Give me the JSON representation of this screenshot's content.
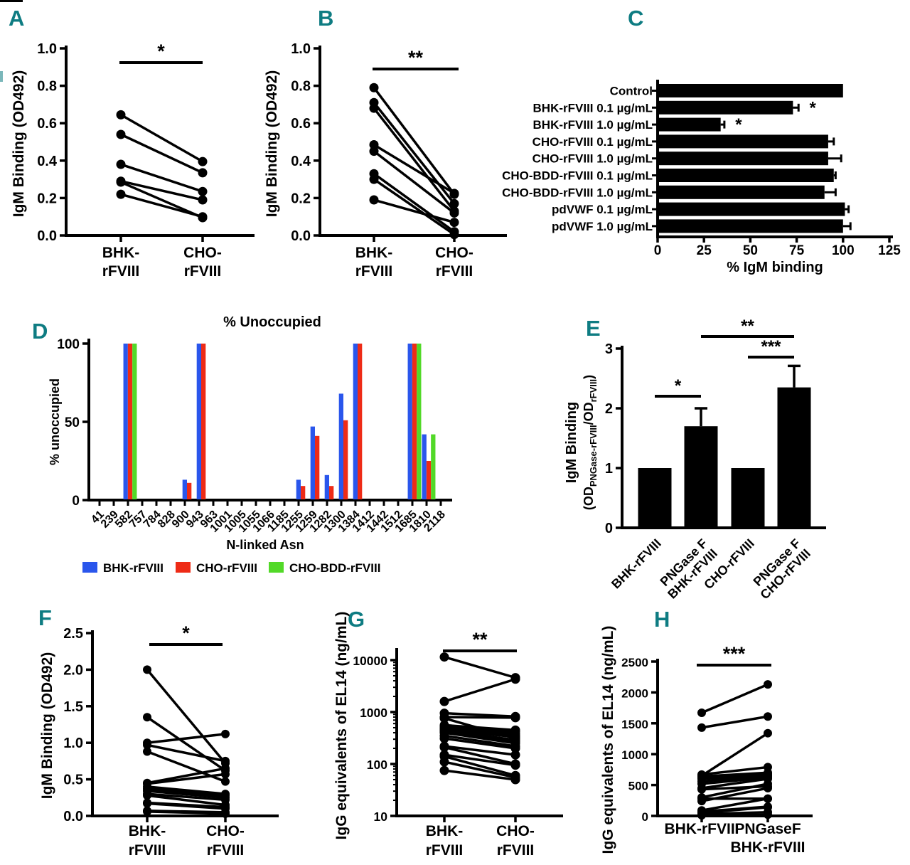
{
  "figure": {
    "accent_teal": "#0e7c82",
    "black": "#000000",
    "panel_letters": [
      "A",
      "B",
      "C",
      "D",
      "E",
      "F",
      "G",
      "H"
    ]
  },
  "chart_data": [
    {
      "panel": "A",
      "type": "paired-line",
      "ylabel": "IgM Binding (OD492)",
      "ylim": [
        0,
        1.0
      ],
      "yticks": [
        {
          "v": 0,
          "l": "0.0"
        },
        {
          "v": 0.2,
          "l": "0.2"
        },
        {
          "v": 0.4,
          "l": "0.4"
        },
        {
          "v": 0.6,
          "l": "0.6"
        },
        {
          "v": 0.8,
          "l": "0.8"
        },
        {
          "v": 1.0,
          "l": "1.0"
        }
      ],
      "categories": [
        [
          "BHK-",
          "rFVIII"
        ],
        [
          "CHO-",
          "rFVIII"
        ]
      ],
      "significance": "*",
      "pairs": [
        [
          0.645,
          0.395
        ],
        [
          0.54,
          0.335
        ],
        [
          0.38,
          0.235
        ],
        [
          0.29,
          0.19
        ],
        [
          0.285,
          0.095
        ],
        [
          0.22,
          0.1
        ]
      ]
    },
    {
      "panel": "B",
      "type": "paired-line",
      "ylabel": "IgM Binding (OD492)",
      "ylim": [
        0,
        1.0
      ],
      "yticks": [
        {
          "v": 0,
          "l": "0.0"
        },
        {
          "v": 0.2,
          "l": "0.2"
        },
        {
          "v": 0.4,
          "l": "0.4"
        },
        {
          "v": 0.6,
          "l": "0.6"
        },
        {
          "v": 0.8,
          "l": "0.8"
        },
        {
          "v": 1.0,
          "l": "1.0"
        }
      ],
      "categories": [
        [
          "BHK-",
          "rFVIII"
        ],
        [
          "CHO-",
          "rFVIII"
        ]
      ],
      "significance": "**",
      "pairs": [
        [
          0.79,
          0.22
        ],
        [
          0.71,
          0.17
        ],
        [
          0.68,
          0.13
        ],
        [
          0.485,
          0.225
        ],
        [
          0.45,
          0.12
        ],
        [
          0.33,
          0.02
        ],
        [
          0.3,
          0.005
        ],
        [
          0.19,
          0.07
        ]
      ]
    },
    {
      "panel": "C",
      "type": "hbar",
      "xlabel": "% IgM binding",
      "xlim": [
        0,
        125
      ],
      "xticks": [
        0,
        25,
        50,
        75,
        100,
        125
      ],
      "rows": [
        {
          "label": "Control",
          "value": 100,
          "error": 0,
          "sig": ""
        },
        {
          "label": "BHK-rFVIII 0.1 µg/mL",
          "value": 73,
          "error": 3,
          "sig": "*"
        },
        {
          "label": "BHK-rFVIII 1.0 µg/mL",
          "value": 34,
          "error": 2,
          "sig": "*"
        },
        {
          "label": "CHO-rFVIII 0.1 µg/mL",
          "value": 92,
          "error": 3,
          "sig": ""
        },
        {
          "label": "CHO-rFVIII 1.0 µg/mL",
          "value": 92,
          "error": 7,
          "sig": ""
        },
        {
          "label": "CHO-BDD-rFVIII 0.1 µg/mL",
          "value": 95,
          "error": 1,
          "sig": ""
        },
        {
          "label": "CHO-BDD-rFVIII 1.0 µg/mL",
          "value": 90,
          "error": 6,
          "sig": ""
        },
        {
          "label": "pdVWF 0.1 µg/mL",
          "value": 101,
          "error": 2,
          "sig": ""
        },
        {
          "label": "pdVWF 1.0 µg/mL",
          "value": 100,
          "error": 4,
          "sig": ""
        }
      ]
    },
    {
      "panel": "D",
      "type": "grouped-bar",
      "title": "% Unoccupied",
      "ylabel": "% unoccupied",
      "xlabel": "N-linked Asn",
      "ylim": [
        0,
        100
      ],
      "yticks": [
        {
          "v": 0,
          "l": "0"
        },
        {
          "v": 50,
          "l": "50"
        },
        {
          "v": 100,
          "l": "100"
        }
      ],
      "categories": [
        "41",
        "239",
        "582",
        "757",
        "784",
        "828",
        "900",
        "943",
        "963",
        "1001",
        "1005",
        "1055",
        "1066",
        "1185",
        "1255",
        "1259",
        "1282",
        "1300",
        "1384",
        "1412",
        "1442",
        "1512",
        "1685",
        "1810",
        "2118"
      ],
      "series": [
        {
          "name": "BHK-rFVIII",
          "color": "#2a56ec",
          "values": [
            0,
            0,
            100,
            0,
            0,
            0,
            13,
            100,
            0,
            0,
            0,
            0,
            0,
            0,
            13,
            47,
            16,
            68,
            100,
            0,
            0,
            0,
            100,
            42,
            0
          ]
        },
        {
          "name": "CHO-rFVIII",
          "color": "#ee2b16",
          "values": [
            0,
            0,
            100,
            0,
            0,
            0,
            11,
            100,
            0,
            0,
            0,
            0,
            0,
            0,
            9,
            41,
            9,
            51,
            100,
            0,
            0,
            0,
            100,
            25,
            0
          ]
        },
        {
          "name": "CHO-BDD-rFVIII",
          "color": "#52d928",
          "values": [
            0,
            0,
            100,
            0,
            0,
            0,
            0,
            0,
            0,
            0,
            0,
            0,
            0,
            0,
            0,
            0,
            0,
            0,
            0,
            0,
            0,
            0,
            100,
            42,
            0
          ]
        }
      ]
    },
    {
      "panel": "E",
      "type": "bar",
      "ylabel_line1": "IgM Binding",
      "ylabel_line2_segments": [
        {
          "t": "(OD",
          "sub": false
        },
        {
          "t": "PNGase-rFVIII",
          "sub": true
        },
        {
          "t": "/OD",
          "sub": false
        },
        {
          "t": "rFVIII",
          "sub": true
        },
        {
          "t": ")",
          "sub": false
        }
      ],
      "ylim": [
        0,
        3
      ],
      "yticks": [
        {
          "v": 0,
          "l": "0"
        },
        {
          "v": 1,
          "l": "1"
        },
        {
          "v": 2,
          "l": "2"
        },
        {
          "v": 3,
          "l": "3"
        }
      ],
      "categories": [
        [
          "BHK-rFVIII"
        ],
        [
          "PNGase F",
          "BHK-rFVIII"
        ],
        [
          "CHO-rFVIII"
        ],
        [
          "PNGase F",
          "CHO-rFVIII"
        ]
      ],
      "values": [
        1.0,
        1.7,
        1.0,
        2.35
      ],
      "errors": [
        0,
        0.3,
        0,
        0.36
      ],
      "significance": [
        {
          "label": "*",
          "from": 0,
          "to": 1
        },
        {
          "label": "***",
          "from": 2,
          "to": 3
        },
        {
          "label": "**",
          "from": 1,
          "to": 3
        }
      ]
    },
    {
      "panel": "F",
      "type": "paired-line",
      "ylabel": "IgM Binding (OD492)",
      "ylim": [
        0,
        2.5
      ],
      "yticks": [
        {
          "v": 0,
          "l": "0.0"
        },
        {
          "v": 0.5,
          "l": "0.5"
        },
        {
          "v": 1.0,
          "l": "1.0"
        },
        {
          "v": 1.5,
          "l": "1.5"
        },
        {
          "v": 2.0,
          "l": "2.0"
        },
        {
          "v": 2.5,
          "l": "2.5"
        }
      ],
      "categories": [
        [
          "BHK-",
          "rFVIII"
        ],
        [
          "CHO-",
          "rFVIII"
        ]
      ],
      "significance": "*",
      "pairs": [
        [
          2.0,
          0.72
        ],
        [
          1.35,
          0.62
        ],
        [
          1.0,
          1.12
        ],
        [
          0.97,
          0.75
        ],
        [
          0.88,
          0.47
        ],
        [
          0.45,
          0.65
        ],
        [
          0.44,
          0.57
        ],
        [
          0.4,
          0.3
        ],
        [
          0.37,
          0.28
        ],
        [
          0.34,
          0.25
        ],
        [
          0.3,
          0.22
        ],
        [
          0.28,
          0.15
        ],
        [
          0.18,
          0.12
        ],
        [
          0.17,
          0.1
        ],
        [
          0.07,
          0.05
        ],
        [
          0.06,
          0.03
        ]
      ]
    },
    {
      "panel": "G",
      "type": "paired-line",
      "ylog": true,
      "ylabel": "IgG equivalents of EL14 (ng/mL)",
      "ylim": [
        10,
        10000
      ],
      "yticks": [
        {
          "v": 10,
          "l": "10"
        },
        {
          "v": 100,
          "l": "100"
        },
        {
          "v": 1000,
          "l": "1000"
        },
        {
          "v": 10000,
          "l": "10000"
        }
      ],
      "categories": [
        [
          "BHK-",
          "rFVIII"
        ],
        [
          "CHO-",
          "rFVIII"
        ]
      ],
      "significance": "**",
      "pairs": [
        [
          11500,
          4600
        ],
        [
          1600,
          4300
        ],
        [
          950,
          820
        ],
        [
          800,
          780
        ],
        [
          760,
          310
        ],
        [
          560,
          450
        ],
        [
          530,
          420
        ],
        [
          500,
          380
        ],
        [
          480,
          350
        ],
        [
          460,
          330
        ],
        [
          440,
          290
        ],
        [
          420,
          270
        ],
        [
          400,
          250
        ],
        [
          350,
          220
        ],
        [
          310,
          200
        ],
        [
          220,
          150
        ],
        [
          210,
          100
        ],
        [
          150,
          95
        ],
        [
          140,
          60
        ],
        [
          110,
          55
        ],
        [
          75,
          50
        ]
      ]
    },
    {
      "panel": "H",
      "type": "paired-line",
      "ylabel": "IgG equivalents of EL14 (ng/mL)",
      "ylim": [
        0,
        2500
      ],
      "yticks": [
        {
          "v": 0,
          "l": "0"
        },
        {
          "v": 500,
          "l": "500"
        },
        {
          "v": 1000,
          "l": "1000"
        },
        {
          "v": 1500,
          "l": "1500"
        },
        {
          "v": 2000,
          "l": "2000"
        },
        {
          "v": 2500,
          "l": "2500"
        }
      ],
      "categories": [
        [
          "BHK-rFVIII"
        ],
        [
          "PNGaseF",
          "BHK-rFVIII"
        ]
      ],
      "significance": "***",
      "pairs": [
        [
          1670,
          2130
        ],
        [
          1430,
          1610
        ],
        [
          670,
          790
        ],
        [
          650,
          1340
        ],
        [
          640,
          700
        ],
        [
          620,
          680
        ],
        [
          600,
          660
        ],
        [
          560,
          640
        ],
        [
          520,
          620
        ],
        [
          450,
          600
        ],
        [
          430,
          480
        ],
        [
          300,
          520
        ],
        [
          280,
          280
        ],
        [
          240,
          450
        ],
        [
          90,
          280
        ],
        [
          70,
          150
        ],
        [
          50,
          140
        ],
        [
          30,
          60
        ],
        [
          10,
          20
        ]
      ]
    }
  ]
}
